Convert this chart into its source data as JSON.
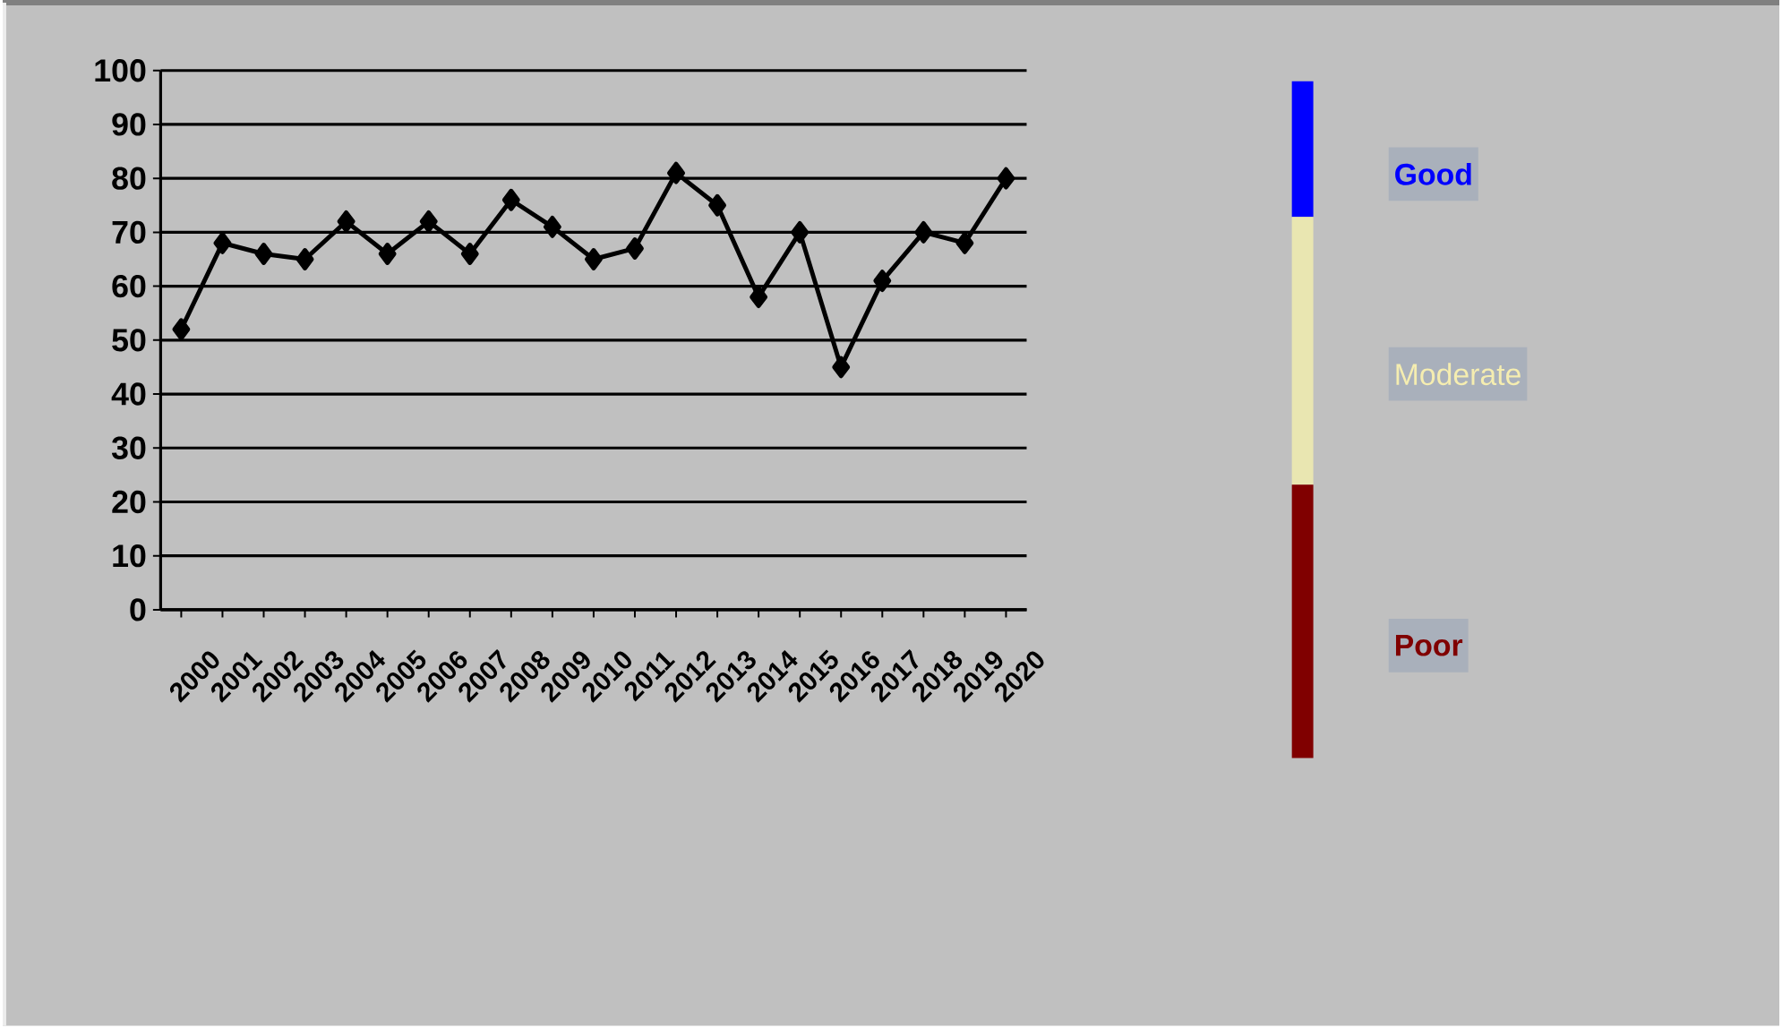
{
  "chart_data": {
    "type": "line",
    "categories": [
      "2000",
      "2001",
      "2002",
      "2003",
      "2004",
      "2005",
      "2006",
      "2007",
      "2008",
      "2009",
      "2010",
      "2011",
      "2012",
      "2013",
      "2014",
      "2015",
      "2016",
      "2017",
      "2018",
      "2019",
      "2020"
    ],
    "series": [
      {
        "color": "#000000",
        "values": [
          52,
          68,
          66,
          65,
          72,
          66,
          72,
          66,
          76,
          71,
          65,
          67,
          81,
          75,
          58,
          70,
          45,
          61,
          70,
          68,
          80
        ]
      }
    ],
    "ylim": [
      0,
      100
    ],
    "yticks": [
      0,
      10,
      20,
      30,
      40,
      50,
      60,
      70,
      80,
      90,
      100
    ],
    "grid": "y",
    "marker": "diamond",
    "line_style": "solid",
    "annotations": [
      "Good",
      "Moderate",
      "Poor"
    ]
  }
}
